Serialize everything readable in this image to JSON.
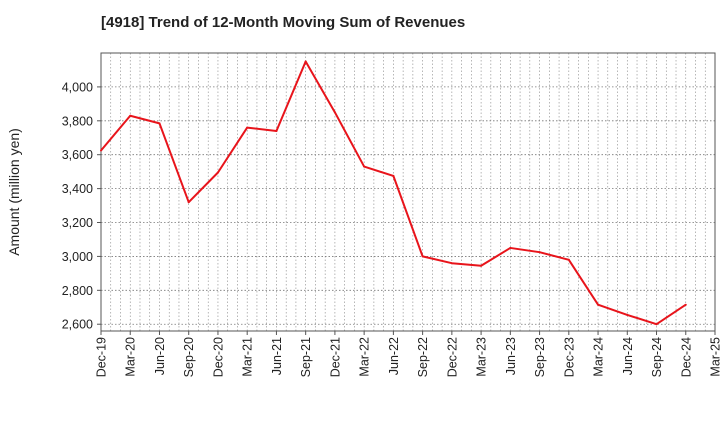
{
  "chart_data": {
    "type": "line",
    "title": "[4918]  Trend of 12-Month Moving Sum of Revenues",
    "ylabel": "Amount (million yen)",
    "xlabel": "",
    "ylim": [
      2560,
      4200
    ],
    "y_ticks": [
      2600,
      2800,
      3000,
      3200,
      3400,
      3600,
      3800,
      4000
    ],
    "y_tick_labels": [
      "2,600",
      "2,800",
      "3,000",
      "3,200",
      "3,400",
      "3,600",
      "3,800",
      "4,000"
    ],
    "x_tick_labels": [
      "Dec-19",
      "Mar-20",
      "Jun-20",
      "Sep-20",
      "Dec-20",
      "Mar-21",
      "Jun-21",
      "Sep-21",
      "Dec-21",
      "Mar-22",
      "Jun-22",
      "Sep-22",
      "Dec-22",
      "Mar-23",
      "Jun-23",
      "Sep-23",
      "Dec-23",
      "Mar-24",
      "Jun-24",
      "Sep-24",
      "Dec-24",
      "Mar-25"
    ],
    "grid": true,
    "line_color": "#e8141b",
    "series": [
      {
        "name": "",
        "x": [
          "Dec-19",
          "Mar-20",
          "Jun-20",
          "Sep-20",
          "Dec-20",
          "Mar-21",
          "Jun-21",
          "Sep-21",
          "Dec-21",
          "Mar-22",
          "Jun-22",
          "Sep-22",
          "Dec-22",
          "Mar-23",
          "Jun-23",
          "Sep-23",
          "Dec-23",
          "Mar-24",
          "Jun-24",
          "Sep-24",
          "Dec-24"
        ],
        "values": [
          3625,
          3830,
          3785,
          3320,
          3495,
          3760,
          3740,
          4150,
          3850,
          3530,
          3475,
          3000,
          2960,
          2945,
          3050,
          3025,
          2980,
          2715,
          2655,
          2600,
          2715
        ]
      }
    ]
  }
}
